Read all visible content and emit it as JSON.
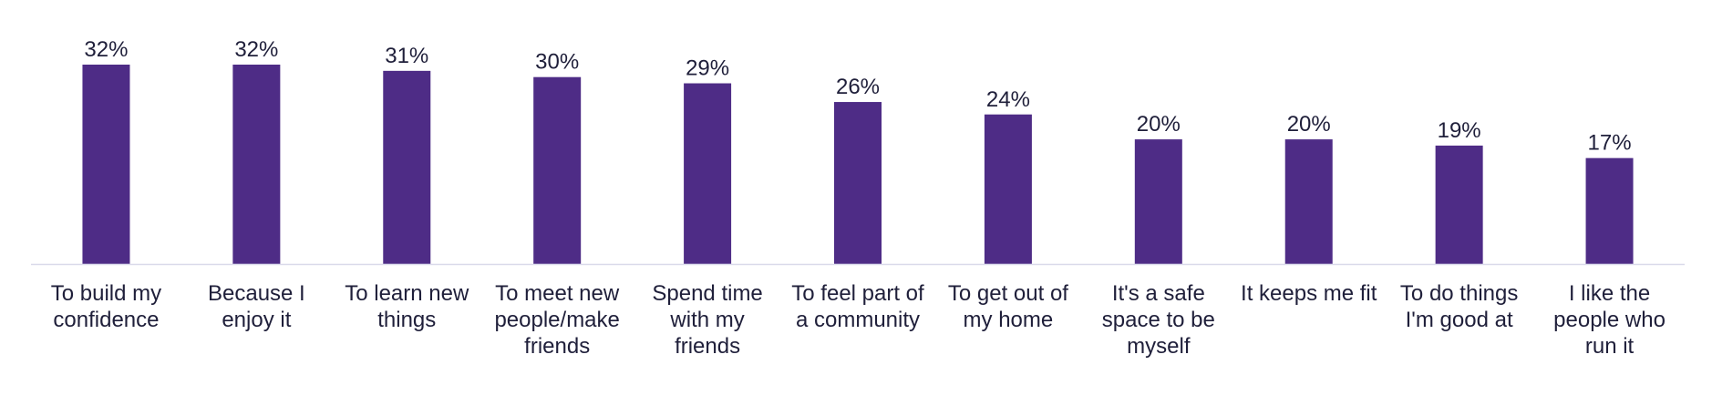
{
  "chart_data": {
    "type": "bar",
    "categories": [
      [
        "To build my",
        "confidence"
      ],
      [
        "Because I",
        "enjoy it"
      ],
      [
        "To learn new",
        "things"
      ],
      [
        "To meet new",
        "people/make",
        "friends"
      ],
      [
        "Spend time",
        "with my",
        "friends"
      ],
      [
        "To feel part of",
        "a community"
      ],
      [
        "To get out of",
        "my home"
      ],
      [
        "It's a safe",
        "space to be",
        "myself"
      ],
      [
        "It keeps me fit"
      ],
      [
        "To do things",
        "I'm good at"
      ],
      [
        "I like the",
        "people who",
        "run it"
      ]
    ],
    "values": [
      32,
      32,
      31,
      30,
      29,
      26,
      24,
      20,
      20,
      19,
      17
    ],
    "value_labels": [
      "32%",
      "32%",
      "31%",
      "30%",
      "29%",
      "26%",
      "24%",
      "20%",
      "20%",
      "19%",
      "17%"
    ],
    "title": "",
    "xlabel": "",
    "ylabel": "",
    "ylim": [
      0,
      32
    ],
    "grid": false,
    "legend": "none",
    "bar_color": "#4e2c86",
    "axis_color": "#d9d9ea"
  }
}
